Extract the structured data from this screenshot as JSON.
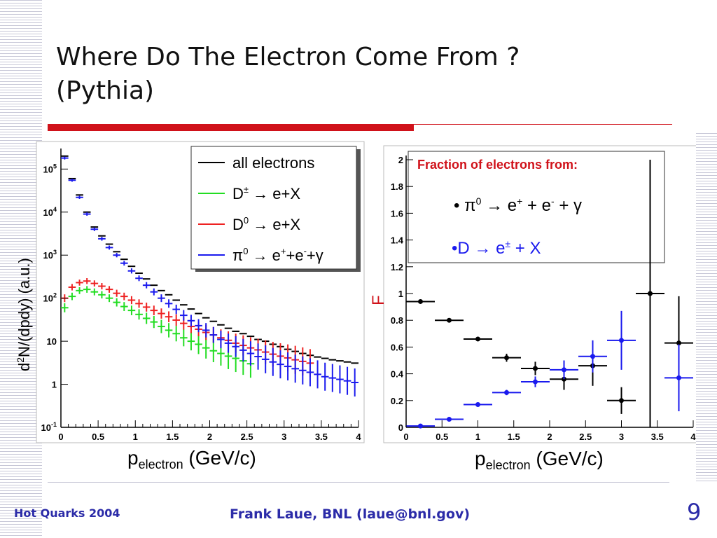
{
  "slide": {
    "title_line1": "Where Do The Electron Come From ?",
    "title_line2": "(Pythia)",
    "footer_left": "Hot Quarks 2004",
    "footer_center": "Frank Laue, BNL (laue@bnl.gov)",
    "page_number": "9",
    "accent_color": "#d0121a",
    "footer_color": "#2b2ba8"
  },
  "chart_data": [
    {
      "type": "scatter",
      "ylog": true,
      "xlabel": "p_electron (GeV/c)",
      "ylabel": "d²N/(dpdy) (a.u.)",
      "xlim": [
        0,
        4
      ],
      "ylim": [
        0.1,
        300000
      ],
      "xticks": [
        "0",
        "0.5",
        "1",
        "1.5",
        "2",
        "2.5",
        "3",
        "3.5",
        "4"
      ],
      "yticks": [
        "10^-1",
        "1",
        "10",
        "10^2",
        "10^3",
        "10^4",
        "10^5"
      ],
      "legend_position": "top-right",
      "series": [
        {
          "name": "all electrons",
          "color": "#000000",
          "x": [
            0.05,
            0.15,
            0.25,
            0.35,
            0.45,
            0.55,
            0.65,
            0.75,
            0.85,
            0.95,
            1.05,
            1.15,
            1.25,
            1.35,
            1.45,
            1.55,
            1.65,
            1.75,
            1.85,
            1.95,
            2.05,
            2.15,
            2.25,
            2.35,
            2.45,
            2.55,
            2.65,
            2.75,
            2.85,
            2.95,
            3.05,
            3.15,
            3.25,
            3.35,
            3.45,
            3.55,
            3.65,
            3.75,
            3.85,
            3.95
          ],
          "y": [
            200000,
            60000,
            25000,
            10000,
            4500,
            2800,
            1800,
            1200,
            800,
            550,
            380,
            280,
            200,
            150,
            120,
            90,
            70,
            56,
            44,
            35,
            29,
            24,
            20,
            17,
            15,
            13,
            11,
            10,
            8.5,
            7.5,
            6.5,
            5.8,
            5.2,
            4.7,
            4.3,
            4,
            3.7,
            3.5,
            3.3,
            3.1
          ]
        },
        {
          "name": "D± → e+X",
          "color": "#22dd22",
          "x": [
            0.05,
            0.15,
            0.25,
            0.35,
            0.45,
            0.55,
            0.65,
            0.75,
            0.85,
            0.95,
            1.05,
            1.15,
            1.25,
            1.35,
            1.45,
            1.55,
            1.65,
            1.75,
            1.85,
            1.95,
            2.05,
            2.15,
            2.25,
            2.35,
            2.45,
            2.55
          ],
          "y": [
            60,
            110,
            150,
            160,
            140,
            120,
            100,
            80,
            64,
            52,
            42,
            34,
            28,
            22,
            18,
            15,
            12,
            10,
            8.5,
            7,
            6,
            5.2,
            4.5,
            4,
            3.5,
            3
          ]
        },
        {
          "name": "D0 → e+X",
          "color": "#ee2222",
          "x": [
            0.05,
            0.15,
            0.25,
            0.35,
            0.45,
            0.55,
            0.65,
            0.75,
            0.85,
            0.95,
            1.05,
            1.15,
            1.25,
            1.35,
            1.45,
            1.55,
            1.65,
            1.75,
            1.85,
            1.95,
            2.05,
            2.15,
            2.25,
            2.35,
            2.45,
            2.55,
            2.65,
            2.75,
            2.85,
            2.95,
            3.05,
            3.15,
            3.25,
            3.35
          ],
          "y": [
            100,
            180,
            230,
            250,
            220,
            190,
            160,
            130,
            110,
            90,
            75,
            62,
            52,
            44,
            37,
            31,
            26,
            22,
            19,
            16,
            14,
            12,
            10.5,
            9,
            8,
            7,
            6.3,
            5.6,
            5,
            4.5,
            4.1,
            3.7,
            3.4,
            3.1
          ]
        },
        {
          "name": "π0 → e+e-γ",
          "color": "#1a1aee",
          "x": [
            0.05,
            0.15,
            0.25,
            0.35,
            0.45,
            0.55,
            0.65,
            0.75,
            0.85,
            0.95,
            1.05,
            1.15,
            1.25,
            1.35,
            1.45,
            1.55,
            1.65,
            1.75,
            1.85,
            1.95,
            2.05,
            2.15,
            2.25,
            2.35,
            2.45,
            2.55,
            2.65,
            2.75,
            2.85,
            2.95,
            3.05,
            3.15,
            3.25,
            3.35,
            3.45,
            3.55,
            3.65,
            3.75,
            3.85,
            3.95
          ],
          "y": [
            180000,
            55000,
            22000,
            9000,
            4000,
            2400,
            1500,
            1000,
            650,
            430,
            290,
            200,
            140,
            100,
            75,
            55,
            40,
            30,
            23,
            18,
            14,
            11,
            9,
            7.5,
            6.2,
            5.2,
            4.4,
            3.8,
            3.3,
            2.9,
            2.6,
            2.3,
            2.1,
            1.9,
            1.7,
            1.5,
            1.4,
            1.3,
            1.2,
            1.1
          ]
        }
      ]
    },
    {
      "type": "scatter",
      "ylabel": "F",
      "xlabel": "p_electron (GeV/c)",
      "xlim": [
        0,
        4
      ],
      "ylim": [
        0,
        2
      ],
      "xticks": [
        "0",
        "0.5",
        "1",
        "1.5",
        "2",
        "2.5",
        "3",
        "3.5",
        "4"
      ],
      "yticks": [
        "0",
        "0.2",
        "0.4",
        "0.6",
        "0.8",
        "1",
        "1.2",
        "1.4",
        "1.6",
        "1.8",
        "2"
      ],
      "legend_title": "Fraction of electrons from:",
      "legend_position": "top-right",
      "legend_pi0": "π0 → e+ + e- + γ",
      "legend_d": "D → e± + X",
      "series": [
        {
          "name": "π0 → e+ + e- + γ",
          "color": "#000000",
          "x": [
            0.2,
            0.6,
            1.0,
            1.4,
            1.8,
            2.2,
            2.6,
            3.0,
            3.4,
            3.8
          ],
          "y": [
            0.94,
            0.8,
            0.66,
            0.52,
            0.44,
            0.36,
            0.46,
            0.2,
            1.0,
            0.63
          ],
          "xerr": [
            0.2,
            0.2,
            0.2,
            0.2,
            0.2,
            0.2,
            0.2,
            0.2,
            0.2,
            0.2
          ],
          "yerr": [
            0.01,
            0.01,
            0.01,
            0.03,
            0.05,
            0.08,
            0.15,
            0.1,
            1.0,
            0.35
          ]
        },
        {
          "name": "D → e± + X",
          "color": "#1a1aee",
          "x": [
            0.2,
            0.6,
            1.0,
            1.4,
            1.8,
            2.2,
            2.6,
            3.0,
            3.8
          ],
          "y": [
            0.01,
            0.06,
            0.17,
            0.26,
            0.34,
            0.43,
            0.53,
            0.65,
            0.37
          ],
          "xerr": [
            0.2,
            0.2,
            0.2,
            0.2,
            0.2,
            0.2,
            0.2,
            0.2,
            0.2
          ],
          "yerr": [
            0.005,
            0.01,
            0.01,
            0.02,
            0.04,
            0.07,
            0.12,
            0.22,
            0.25
          ]
        }
      ]
    }
  ]
}
